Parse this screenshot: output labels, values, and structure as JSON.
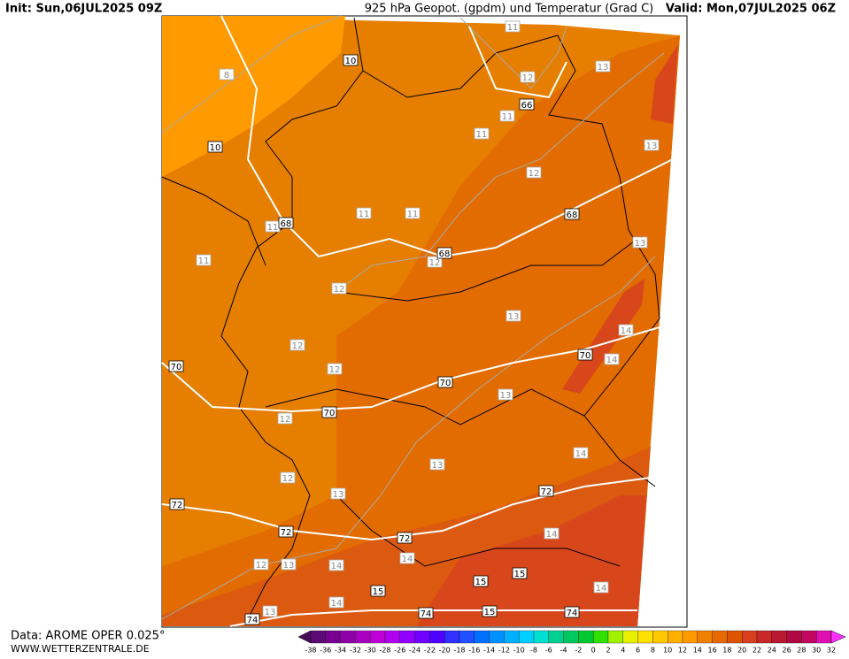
{
  "header": {
    "init": "Init: Sun,06JUL2025 09Z",
    "title": "925 hPa Geopot. (gpdm) und Temperatur (Grad C)",
    "valid": "Valid: Mon,07JUL2025 06Z"
  },
  "map": {
    "geopotential_labels": [
      10,
      10,
      66,
      68,
      68,
      68,
      70,
      70,
      70,
      70,
      72,
      72,
      72,
      72,
      74,
      74,
      74,
      15,
      15,
      15,
      15
    ],
    "temperature_labels": [
      8,
      11,
      13,
      12,
      11,
      11,
      13,
      12,
      11,
      11,
      11,
      11,
      12,
      13,
      12,
      13,
      14,
      12,
      12,
      14,
      13,
      12,
      14,
      13,
      12,
      13,
      14,
      14,
      12,
      13,
      14,
      14,
      14,
      13
    ]
  },
  "colorbar": {
    "labels": [
      -38,
      -36,
      -34,
      -32,
      -30,
      -28,
      -26,
      -24,
      -22,
      -20,
      -18,
      -16,
      -14,
      -12,
      -10,
      -8,
      -6,
      -4,
      -2,
      0,
      2,
      4,
      6,
      8,
      10,
      12,
      14,
      16,
      18,
      20,
      22,
      24,
      26,
      28,
      30,
      32
    ],
    "colors": [
      "#4a0a5a",
      "#5c0a75",
      "#760090",
      "#9000a8",
      "#a800c0",
      "#c000d8",
      "#b000f0",
      "#9000ff",
      "#7000ff",
      "#5000ff",
      "#3030ff",
      "#2050ff",
      "#0070ff",
      "#0090ff",
      "#00b0ff",
      "#00d0ff",
      "#00e0d0",
      "#00d090",
      "#00c860",
      "#00c830",
      "#30e000",
      "#a0f000",
      "#e8f000",
      "#ffe000",
      "#ffc800",
      "#ffb000",
      "#ff9900",
      "#f08000",
      "#e66a00",
      "#dd5500",
      "#d84020",
      "#c82828",
      "#b81830",
      "#b00840",
      "#c00860",
      "#e010b0",
      "#ff30ff"
    ]
  },
  "footer": {
    "source": "Data: AROME OPER 0.025°",
    "website": "WWW.WETTERZENTRALE.DE"
  }
}
